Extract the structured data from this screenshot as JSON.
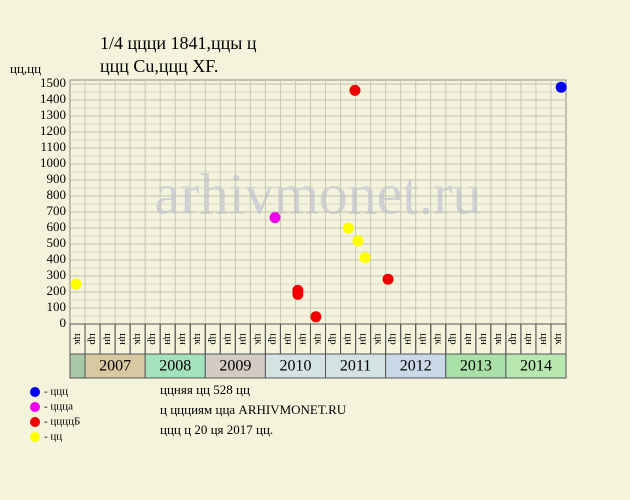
{
  "chart_data": {
    "type": "scatter",
    "title": "1/4 ццци 1841,ццы ц",
    "subtitle": "ццц Cu,ццц XF.",
    "y_label": "цц,цц",
    "watermark": "arhivmonet.ru",
    "xlim": [
      2006.75,
      2015
    ],
    "ylim": [
      0,
      1500
    ],
    "yticks": [
      0,
      100,
      200,
      300,
      400,
      500,
      600,
      700,
      800,
      900,
      1000,
      1100,
      1200,
      1300,
      1400,
      1500
    ],
    "grid": true,
    "quarter_labels": [
      "цк",
      "цр",
      "цн",
      "цн",
      "цк",
      "цр",
      "цн",
      "цн",
      "цк",
      "цр",
      "цн",
      "цн",
      "цк",
      "цр",
      "цн",
      "цн",
      "цк",
      "цр",
      "цн",
      "цн",
      "цк",
      "цр",
      "цн",
      "цн",
      "цк",
      "цр",
      "цн",
      "цн",
      "цк",
      "цр",
      "цн",
      "цн",
      "цк"
    ],
    "years": [
      "2007",
      "2008",
      "2009",
      "2010",
      "2011",
      "2012",
      "2013",
      "2014"
    ],
    "year_colors": [
      "#d9c9a2",
      "#a4e2bc",
      "#d4cbc4",
      "#d4e2e2",
      "#d4e2e2",
      "#cad8e8",
      "#a8e0a8",
      "#b8e8b0"
    ],
    "series": [
      {
        "name": "- ццц",
        "color": "#0000ee",
        "x": [
          2014.92
        ],
        "values": [
          1480
        ]
      },
      {
        "name": "- ццца",
        "color": "#ee00ee",
        "x": [
          2010.16
        ],
        "values": [
          665
        ]
      },
      {
        "name": "- ццццБ",
        "color": "#ee0000",
        "x": [
          2010.54,
          2010.54,
          2010.84,
          2011.49,
          2012.04
        ],
        "values": [
          210,
          185,
          45,
          1460,
          280
        ]
      },
      {
        "name": "- цц",
        "color": "#ffff00",
        "x": [
          2006.85,
          2011.38,
          2011.54,
          2011.66
        ],
        "values": [
          250,
          600,
          520,
          415
        ]
      }
    ],
    "notes": [
      "ццняя цц 528 цц",
      "ц ццциям цца ARHIVMONET.RU",
      "ццц ц 20 ця 2017 цц."
    ]
  }
}
